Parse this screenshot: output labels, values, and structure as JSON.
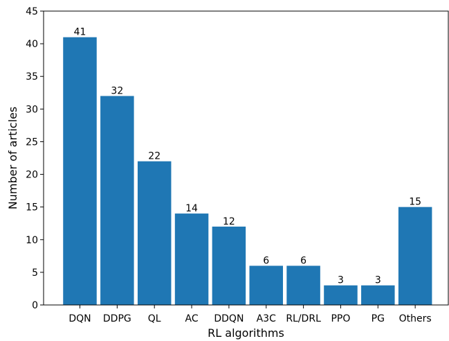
{
  "chart_data": {
    "type": "bar",
    "title": "",
    "xlabel": "RL algorithms",
    "ylabel": "Number of articles",
    "categories": [
      "DQN",
      "DDPG",
      "QL",
      "AC",
      "DDQN",
      "A3C",
      "RL/DRL",
      "PPO",
      "PG",
      "Others"
    ],
    "values": [
      41,
      32,
      22,
      14,
      12,
      6,
      6,
      3,
      3,
      15
    ],
    "ylim": [
      0,
      45
    ],
    "yticks": [
      0,
      5,
      10,
      15,
      20,
      25,
      30,
      35,
      40,
      45
    ],
    "grid": false,
    "legend": "none",
    "bar_color": "#1f77b4",
    "data_labels": true
  }
}
